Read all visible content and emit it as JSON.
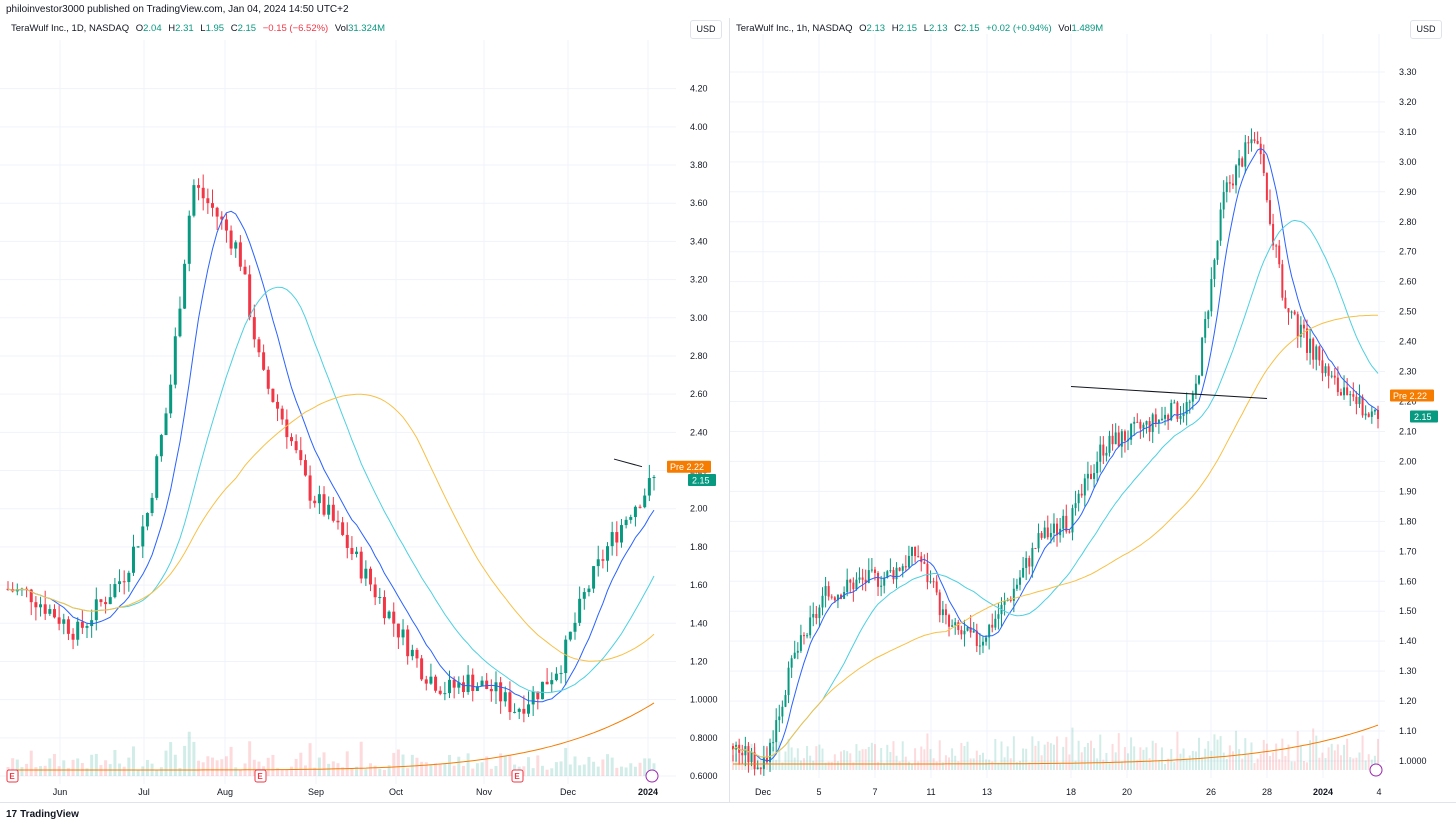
{
  "publisher_line": "philoinvestor3000 published on TradingView.com, Jan 04, 2024 14:50 UTC+2",
  "footer": {
    "logo_icon": "tradingview-logo-icon",
    "brand": "TradingView"
  },
  "colors": {
    "up": "#089981",
    "down": "#f23645",
    "ma_fast": "#2962ff",
    "ma_mid": "#4dd0e1",
    "ma_slow": "#f7c046",
    "vol_ma": "#f57c00",
    "pre": "#f57c00"
  },
  "chart_data": [
    {
      "type": "candlestick",
      "legend": {
        "name": "TeraWulf Inc., 1D, NASDAQ",
        "o_label": "O",
        "o": "2.04",
        "h_label": "H",
        "h": "2.31",
        "l_label": "L",
        "l": "1.95",
        "c_label": "C",
        "c": "2.15",
        "change": "−0.15 (−6.52%)",
        "vol_label": "Vol",
        "vol": "31.324M"
      },
      "currency": "USD",
      "y_ticks": [
        "4.20",
        "4.00",
        "3.80",
        "3.60",
        "3.40",
        "3.20",
        "3.00",
        "2.80",
        "2.60",
        "2.40",
        "2.20",
        "2.00",
        "1.80",
        "1.60",
        "1.40",
        "1.20",
        "1.0000",
        "0.8000",
        "0.6000"
      ],
      "ylim": [
        0.6,
        4.35
      ],
      "x_ticks": [
        "Jun",
        "Jul",
        "Aug",
        "Sep",
        "Oct",
        "Nov",
        "Dec",
        "2024"
      ],
      "pre_label": "Pre",
      "pre_value": "2.22",
      "last_value": "2.15",
      "earnings_marker": "E",
      "closes_by_week": [
        1.58,
        1.55,
        1.45,
        1.35,
        1.5,
        1.65,
        1.95,
        2.6,
        3.7,
        3.55,
        3.35,
        2.7,
        2.45,
        2.1,
        1.95,
        1.75,
        1.55,
        1.35,
        1.15,
        1.05,
        1.1,
        1.05,
        0.95,
        1.05,
        1.2,
        1.55,
        1.8,
        2.0,
        2.15
      ]
    },
    {
      "type": "candlestick",
      "legend": {
        "name": "TeraWulf Inc., 1h, NASDAQ",
        "o_label": "O",
        "o": "2.13",
        "h_label": "H",
        "h": "2.15",
        "l_label": "L",
        "l": "2.13",
        "c_label": "C",
        "c": "2.15",
        "change": "+0.02 (+0.94%)",
        "vol_label": "Vol",
        "vol": "1.489M"
      },
      "currency": "USD",
      "y_ticks": [
        "3.30",
        "3.20",
        "3.10",
        "3.00",
        "2.90",
        "2.80",
        "2.70",
        "2.60",
        "2.50",
        "2.40",
        "2.30",
        "2.20",
        "2.10",
        "2.00",
        "1.90",
        "1.80",
        "1.70",
        "1.60",
        "1.50",
        "1.40",
        "1.30",
        "1.20",
        "1.10",
        "1.0000"
      ],
      "ylim": [
        0.97,
        3.36
      ],
      "x_ticks": [
        "Dec",
        "5",
        "7",
        "11",
        "13",
        "18",
        "20",
        "26",
        "28",
        "2024",
        "4"
      ],
      "pre_label": "Pre",
      "pre_value": "2.22",
      "last_value": "2.15"
    }
  ]
}
